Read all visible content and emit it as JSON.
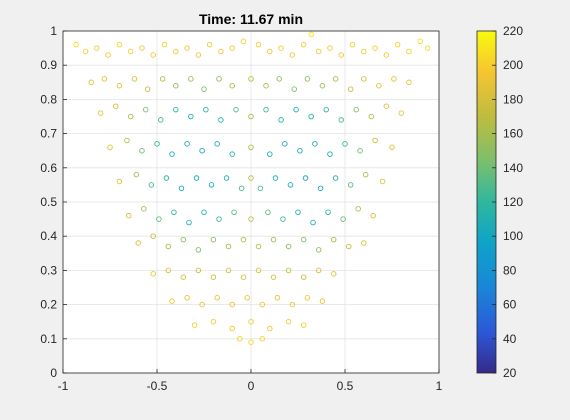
{
  "chart_data": {
    "type": "scatter",
    "title": "Time: 11.67 min",
    "xlim": [
      -1,
      1
    ],
    "ylim": [
      0,
      1
    ],
    "xticks": [
      -1,
      -0.5,
      0,
      0.5,
      1
    ],
    "xtick_labels": [
      "-1",
      "-0.5",
      "0",
      "0.5",
      "1"
    ],
    "yticks": [
      0,
      0.1,
      0.2,
      0.3,
      0.4,
      0.5,
      0.6,
      0.7,
      0.8,
      0.9,
      1
    ],
    "ytick_labels": [
      "0",
      "0.1",
      "0.2",
      "0.3",
      "0.4",
      "0.5",
      "0.6",
      "0.7",
      "0.8",
      "0.9",
      "1"
    ],
    "grid": true,
    "marker": "open-circle",
    "colorbar": {
      "limits": [
        20,
        220
      ],
      "ticks": [
        20,
        40,
        60,
        80,
        100,
        120,
        140,
        160,
        180,
        200,
        220
      ],
      "tick_labels": [
        "20",
        "40",
        "60",
        "80",
        "100",
        "120",
        "140",
        "160",
        "180",
        "200",
        "220"
      ],
      "colormap": "parula",
      "placement": "right"
    },
    "series": [
      {
        "points": [
          {
            "x": -0.93,
            "y": 0.96,
            "c": 205
          },
          {
            "x": -0.88,
            "y": 0.94,
            "c": 200
          },
          {
            "x": -0.82,
            "y": 0.95,
            "c": 198
          },
          {
            "x": -0.76,
            "y": 0.93,
            "c": 196
          },
          {
            "x": -0.7,
            "y": 0.96,
            "c": 202
          },
          {
            "x": -0.64,
            "y": 0.94,
            "c": 199
          },
          {
            "x": -0.58,
            "y": 0.95,
            "c": 197
          },
          {
            "x": -0.52,
            "y": 0.93,
            "c": 195
          },
          {
            "x": -0.46,
            "y": 0.96,
            "c": 200
          },
          {
            "x": -0.4,
            "y": 0.94,
            "c": 197
          },
          {
            "x": -0.34,
            "y": 0.95,
            "c": 195
          },
          {
            "x": -0.28,
            "y": 0.93,
            "c": 193
          },
          {
            "x": -0.22,
            "y": 0.96,
            "c": 198
          },
          {
            "x": -0.16,
            "y": 0.94,
            "c": 195
          },
          {
            "x": -0.1,
            "y": 0.95,
            "c": 194
          },
          {
            "x": -0.04,
            "y": 0.97,
            "c": 200
          },
          {
            "x": 0.04,
            "y": 0.96,
            "c": 199
          },
          {
            "x": 0.1,
            "y": 0.94,
            "c": 196
          },
          {
            "x": 0.16,
            "y": 0.95,
            "c": 197
          },
          {
            "x": 0.22,
            "y": 0.93,
            "c": 194
          },
          {
            "x": 0.28,
            "y": 0.96,
            "c": 199
          },
          {
            "x": 0.32,
            "y": 0.99,
            "c": 210
          },
          {
            "x": 0.36,
            "y": 0.94,
            "c": 196
          },
          {
            "x": 0.42,
            "y": 0.95,
            "c": 197
          },
          {
            "x": 0.48,
            "y": 0.93,
            "c": 195
          },
          {
            "x": 0.54,
            "y": 0.96,
            "c": 200
          },
          {
            "x": 0.6,
            "y": 0.94,
            "c": 198
          },
          {
            "x": 0.66,
            "y": 0.95,
            "c": 199
          },
          {
            "x": 0.72,
            "y": 0.93,
            "c": 197
          },
          {
            "x": 0.78,
            "y": 0.96,
            "c": 202
          },
          {
            "x": 0.84,
            "y": 0.94,
            "c": 200
          },
          {
            "x": 0.9,
            "y": 0.97,
            "c": 206
          },
          {
            "x": 0.94,
            "y": 0.95,
            "c": 204
          },
          {
            "x": -0.85,
            "y": 0.85,
            "c": 190
          },
          {
            "x": -0.78,
            "y": 0.86,
            "c": 188
          },
          {
            "x": -0.7,
            "y": 0.84,
            "c": 185
          },
          {
            "x": -0.62,
            "y": 0.86,
            "c": 180
          },
          {
            "x": -0.55,
            "y": 0.83,
            "c": 170
          },
          {
            "x": -0.47,
            "y": 0.86,
            "c": 165
          },
          {
            "x": -0.4,
            "y": 0.84,
            "c": 150
          },
          {
            "x": -0.32,
            "y": 0.86,
            "c": 155
          },
          {
            "x": -0.25,
            "y": 0.83,
            "c": 145
          },
          {
            "x": -0.17,
            "y": 0.86,
            "c": 150
          },
          {
            "x": -0.1,
            "y": 0.84,
            "c": 160
          },
          {
            "x": 0.0,
            "y": 0.86,
            "c": 170
          },
          {
            "x": 0.08,
            "y": 0.84,
            "c": 160
          },
          {
            "x": 0.15,
            "y": 0.86,
            "c": 150
          },
          {
            "x": 0.23,
            "y": 0.83,
            "c": 145
          },
          {
            "x": 0.3,
            "y": 0.86,
            "c": 150
          },
          {
            "x": 0.38,
            "y": 0.84,
            "c": 155
          },
          {
            "x": 0.45,
            "y": 0.86,
            "c": 165
          },
          {
            "x": 0.53,
            "y": 0.83,
            "c": 172
          },
          {
            "x": 0.6,
            "y": 0.86,
            "c": 180
          },
          {
            "x": 0.68,
            "y": 0.84,
            "c": 186
          },
          {
            "x": 0.76,
            "y": 0.86,
            "c": 190
          },
          {
            "x": 0.84,
            "y": 0.85,
            "c": 192
          },
          {
            "x": -0.8,
            "y": 0.76,
            "c": 188
          },
          {
            "x": -0.72,
            "y": 0.78,
            "c": 182
          },
          {
            "x": -0.64,
            "y": 0.75,
            "c": 165
          },
          {
            "x": -0.56,
            "y": 0.77,
            "c": 145
          },
          {
            "x": -0.48,
            "y": 0.74,
            "c": 125
          },
          {
            "x": -0.4,
            "y": 0.77,
            "c": 115
          },
          {
            "x": -0.32,
            "y": 0.75,
            "c": 110
          },
          {
            "x": -0.24,
            "y": 0.77,
            "c": 112
          },
          {
            "x": -0.16,
            "y": 0.74,
            "c": 118
          },
          {
            "x": -0.08,
            "y": 0.77,
            "c": 130
          },
          {
            "x": 0.0,
            "y": 0.75,
            "c": 160
          },
          {
            "x": 0.08,
            "y": 0.77,
            "c": 125
          },
          {
            "x": 0.16,
            "y": 0.74,
            "c": 115
          },
          {
            "x": 0.24,
            "y": 0.77,
            "c": 112
          },
          {
            "x": 0.32,
            "y": 0.75,
            "c": 110
          },
          {
            "x": 0.4,
            "y": 0.77,
            "c": 118
          },
          {
            "x": 0.48,
            "y": 0.74,
            "c": 130
          },
          {
            "x": 0.56,
            "y": 0.77,
            "c": 150
          },
          {
            "x": 0.64,
            "y": 0.75,
            "c": 168
          },
          {
            "x": 0.72,
            "y": 0.78,
            "c": 182
          },
          {
            "x": 0.8,
            "y": 0.76,
            "c": 190
          },
          {
            "x": -0.75,
            "y": 0.66,
            "c": 185
          },
          {
            "x": -0.66,
            "y": 0.68,
            "c": 170
          },
          {
            "x": -0.58,
            "y": 0.65,
            "c": 140
          },
          {
            "x": -0.5,
            "y": 0.67,
            "c": 118
          },
          {
            "x": -0.42,
            "y": 0.64,
            "c": 108
          },
          {
            "x": -0.34,
            "y": 0.67,
            "c": 104
          },
          {
            "x": -0.26,
            "y": 0.65,
            "c": 102
          },
          {
            "x": -0.18,
            "y": 0.67,
            "c": 106
          },
          {
            "x": -0.1,
            "y": 0.64,
            "c": 112
          },
          {
            "x": 0.0,
            "y": 0.66,
            "c": 165
          },
          {
            "x": 0.1,
            "y": 0.64,
            "c": 112
          },
          {
            "x": 0.18,
            "y": 0.67,
            "c": 106
          },
          {
            "x": 0.26,
            "y": 0.65,
            "c": 102
          },
          {
            "x": 0.34,
            "y": 0.67,
            "c": 104
          },
          {
            "x": 0.42,
            "y": 0.64,
            "c": 108
          },
          {
            "x": 0.5,
            "y": 0.67,
            "c": 120
          },
          {
            "x": 0.58,
            "y": 0.65,
            "c": 142
          },
          {
            "x": 0.66,
            "y": 0.68,
            "c": 172
          },
          {
            "x": 0.75,
            "y": 0.66,
            "c": 186
          },
          {
            "x": -0.7,
            "y": 0.56,
            "c": 182
          },
          {
            "x": -0.61,
            "y": 0.58,
            "c": 160
          },
          {
            "x": -0.53,
            "y": 0.55,
            "c": 130
          },
          {
            "x": -0.45,
            "y": 0.57,
            "c": 112
          },
          {
            "x": -0.37,
            "y": 0.54,
            "c": 104
          },
          {
            "x": -0.29,
            "y": 0.57,
            "c": 100
          },
          {
            "x": -0.21,
            "y": 0.55,
            "c": 102
          },
          {
            "x": -0.13,
            "y": 0.57,
            "c": 110
          },
          {
            "x": -0.05,
            "y": 0.54,
            "c": 128
          },
          {
            "x": 0.0,
            "y": 0.57,
            "c": 168
          },
          {
            "x": 0.05,
            "y": 0.54,
            "c": 128
          },
          {
            "x": 0.13,
            "y": 0.57,
            "c": 110
          },
          {
            "x": 0.21,
            "y": 0.55,
            "c": 102
          },
          {
            "x": 0.29,
            "y": 0.57,
            "c": 100
          },
          {
            "x": 0.37,
            "y": 0.54,
            "c": 104
          },
          {
            "x": 0.45,
            "y": 0.57,
            "c": 114
          },
          {
            "x": 0.53,
            "y": 0.55,
            "c": 132
          },
          {
            "x": 0.61,
            "y": 0.58,
            "c": 162
          },
          {
            "x": 0.7,
            "y": 0.56,
            "c": 184
          },
          {
            "x": -0.65,
            "y": 0.46,
            "c": 180
          },
          {
            "x": -0.57,
            "y": 0.48,
            "c": 158
          },
          {
            "x": -0.49,
            "y": 0.45,
            "c": 135
          },
          {
            "x": -0.41,
            "y": 0.47,
            "c": 118
          },
          {
            "x": -0.33,
            "y": 0.44,
            "c": 110
          },
          {
            "x": -0.25,
            "y": 0.47,
            "c": 112
          },
          {
            "x": -0.17,
            "y": 0.45,
            "c": 120
          },
          {
            "x": -0.09,
            "y": 0.47,
            "c": 135
          },
          {
            "x": 0.0,
            "y": 0.45,
            "c": 170
          },
          {
            "x": 0.09,
            "y": 0.47,
            "c": 135
          },
          {
            "x": 0.17,
            "y": 0.45,
            "c": 120
          },
          {
            "x": 0.25,
            "y": 0.47,
            "c": 112
          },
          {
            "x": 0.33,
            "y": 0.44,
            "c": 110
          },
          {
            "x": 0.41,
            "y": 0.47,
            "c": 118
          },
          {
            "x": 0.49,
            "y": 0.45,
            "c": 136
          },
          {
            "x": 0.57,
            "y": 0.48,
            "c": 160
          },
          {
            "x": 0.65,
            "y": 0.46,
            "c": 182
          },
          {
            "x": -0.6,
            "y": 0.38,
            "c": 185
          },
          {
            "x": -0.52,
            "y": 0.4,
            "c": 172
          },
          {
            "x": -0.44,
            "y": 0.37,
            "c": 160
          },
          {
            "x": -0.36,
            "y": 0.39,
            "c": 150
          },
          {
            "x": -0.28,
            "y": 0.36,
            "c": 145
          },
          {
            "x": -0.2,
            "y": 0.39,
            "c": 150
          },
          {
            "x": -0.12,
            "y": 0.37,
            "c": 158
          },
          {
            "x": -0.04,
            "y": 0.39,
            "c": 168
          },
          {
            "x": 0.04,
            "y": 0.37,
            "c": 168
          },
          {
            "x": 0.12,
            "y": 0.39,
            "c": 158
          },
          {
            "x": 0.2,
            "y": 0.37,
            "c": 150
          },
          {
            "x": 0.28,
            "y": 0.39,
            "c": 145
          },
          {
            "x": 0.36,
            "y": 0.36,
            "c": 150
          },
          {
            "x": 0.44,
            "y": 0.39,
            "c": 160
          },
          {
            "x": 0.52,
            "y": 0.37,
            "c": 172
          },
          {
            "x": 0.6,
            "y": 0.38,
            "c": 186
          },
          {
            "x": -0.52,
            "y": 0.29,
            "c": 190
          },
          {
            "x": -0.44,
            "y": 0.3,
            "c": 185
          },
          {
            "x": -0.36,
            "y": 0.28,
            "c": 180
          },
          {
            "x": -0.28,
            "y": 0.3,
            "c": 176
          },
          {
            "x": -0.2,
            "y": 0.28,
            "c": 175
          },
          {
            "x": -0.12,
            "y": 0.3,
            "c": 178
          },
          {
            "x": -0.04,
            "y": 0.28,
            "c": 182
          },
          {
            "x": 0.04,
            "y": 0.3,
            "c": 182
          },
          {
            "x": 0.12,
            "y": 0.28,
            "c": 178
          },
          {
            "x": 0.2,
            "y": 0.3,
            "c": 175
          },
          {
            "x": 0.28,
            "y": 0.28,
            "c": 176
          },
          {
            "x": 0.36,
            "y": 0.3,
            "c": 180
          },
          {
            "x": 0.44,
            "y": 0.29,
            "c": 186
          },
          {
            "x": -0.42,
            "y": 0.21,
            "c": 195
          },
          {
            "x": -0.34,
            "y": 0.22,
            "c": 192
          },
          {
            "x": -0.26,
            "y": 0.2,
            "c": 190
          },
          {
            "x": -0.18,
            "y": 0.22,
            "c": 188
          },
          {
            "x": -0.1,
            "y": 0.2,
            "c": 190
          },
          {
            "x": -0.02,
            "y": 0.22,
            "c": 192
          },
          {
            "x": 0.06,
            "y": 0.2,
            "c": 190
          },
          {
            "x": 0.14,
            "y": 0.22,
            "c": 188
          },
          {
            "x": 0.22,
            "y": 0.2,
            "c": 190
          },
          {
            "x": 0.3,
            "y": 0.22,
            "c": 192
          },
          {
            "x": 0.38,
            "y": 0.21,
            "c": 195
          },
          {
            "x": -0.3,
            "y": 0.14,
            "c": 200
          },
          {
            "x": -0.2,
            "y": 0.15,
            "c": 198
          },
          {
            "x": -0.1,
            "y": 0.13,
            "c": 198
          },
          {
            "x": 0.0,
            "y": 0.15,
            "c": 200
          },
          {
            "x": 0.1,
            "y": 0.13,
            "c": 198
          },
          {
            "x": 0.2,
            "y": 0.15,
            "c": 198
          },
          {
            "x": 0.28,
            "y": 0.14,
            "c": 200
          },
          {
            "x": -0.06,
            "y": 0.1,
            "c": 204
          },
          {
            "x": 0.0,
            "y": 0.09,
            "c": 206
          },
          {
            "x": 0.06,
            "y": 0.1,
            "c": 204
          }
        ]
      }
    ]
  }
}
